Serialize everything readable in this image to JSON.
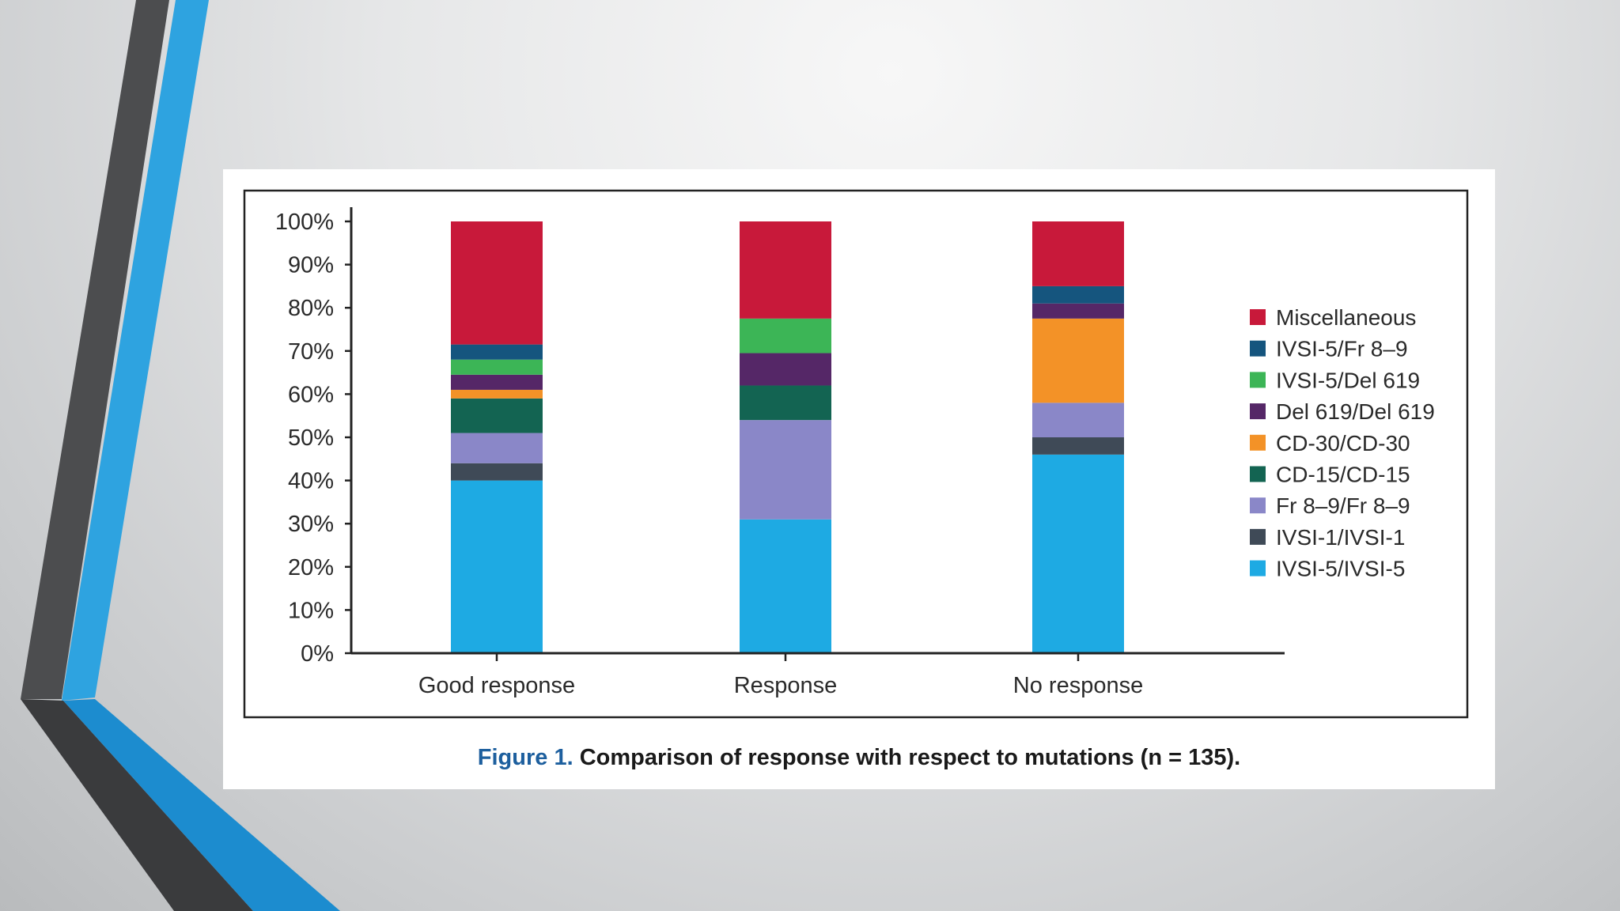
{
  "colors": {
    "Miscellaneous": "#c8193a",
    "IVSI-5/Fr 8–9": "#15557e",
    "IVSI-5/Del 619": "#3cb556",
    "Del 619/Del 619": "#552767",
    "CD-30/CD-30": "#f39227",
    "CD-15/CD-15": "#136452",
    "Fr 8–9/Fr 8–9": "#8a87c8",
    "IVSI-1/IVSI-1": "#3f4a57",
    "IVSI-5/IVSI-5": "#1eaae3"
  },
  "chart_data": {
    "type": "bar",
    "stacked": true,
    "normalized": true,
    "categories": [
      "Good response",
      "Response",
      "No response"
    ],
    "y_tick_labels": [
      "0%",
      "10%",
      "20%",
      "30%",
      "40%",
      "50%",
      "60%",
      "70%",
      "80%",
      "90%",
      "100%"
    ],
    "ylim": [
      0,
      100
    ],
    "grid": false,
    "legend_position": "right",
    "series": [
      {
        "name": "IVSI-5/IVSI-5",
        "values": [
          40,
          31,
          46
        ]
      },
      {
        "name": "IVSI-1/IVSI-1",
        "values": [
          4,
          0,
          4
        ]
      },
      {
        "name": "Fr 8–9/Fr 8–9",
        "values": [
          7,
          23,
          8
        ]
      },
      {
        "name": "CD-15/CD-15",
        "values": [
          8,
          8,
          0
        ]
      },
      {
        "name": "CD-30/CD-30",
        "values": [
          2,
          0,
          19.5
        ]
      },
      {
        "name": "Del 619/Del 619",
        "values": [
          3.5,
          7.5,
          3.5
        ]
      },
      {
        "name": "IVSI-5/Del 619",
        "values": [
          3.5,
          8,
          0
        ]
      },
      {
        "name": "IVSI-5/Fr 8–9",
        "values": [
          3.5,
          0,
          4
        ]
      },
      {
        "name": "Miscellaneous",
        "values": [
          28.5,
          22.5,
          15
        ]
      }
    ],
    "legend": [
      "Miscellaneous",
      "IVSI-5/Fr 8–9",
      "IVSI-5/Del 619",
      "Del 619/Del 619",
      "CD-30/CD-30",
      "CD-15/CD-15",
      "Fr 8–9/Fr 8–9",
      "IVSI-1/IVSI-1",
      "IVSI-5/IVSI-5"
    ]
  },
  "caption": {
    "prefix": "Figure 1.",
    "text": " Comparison of response with respect to mutations (n = 135)."
  }
}
